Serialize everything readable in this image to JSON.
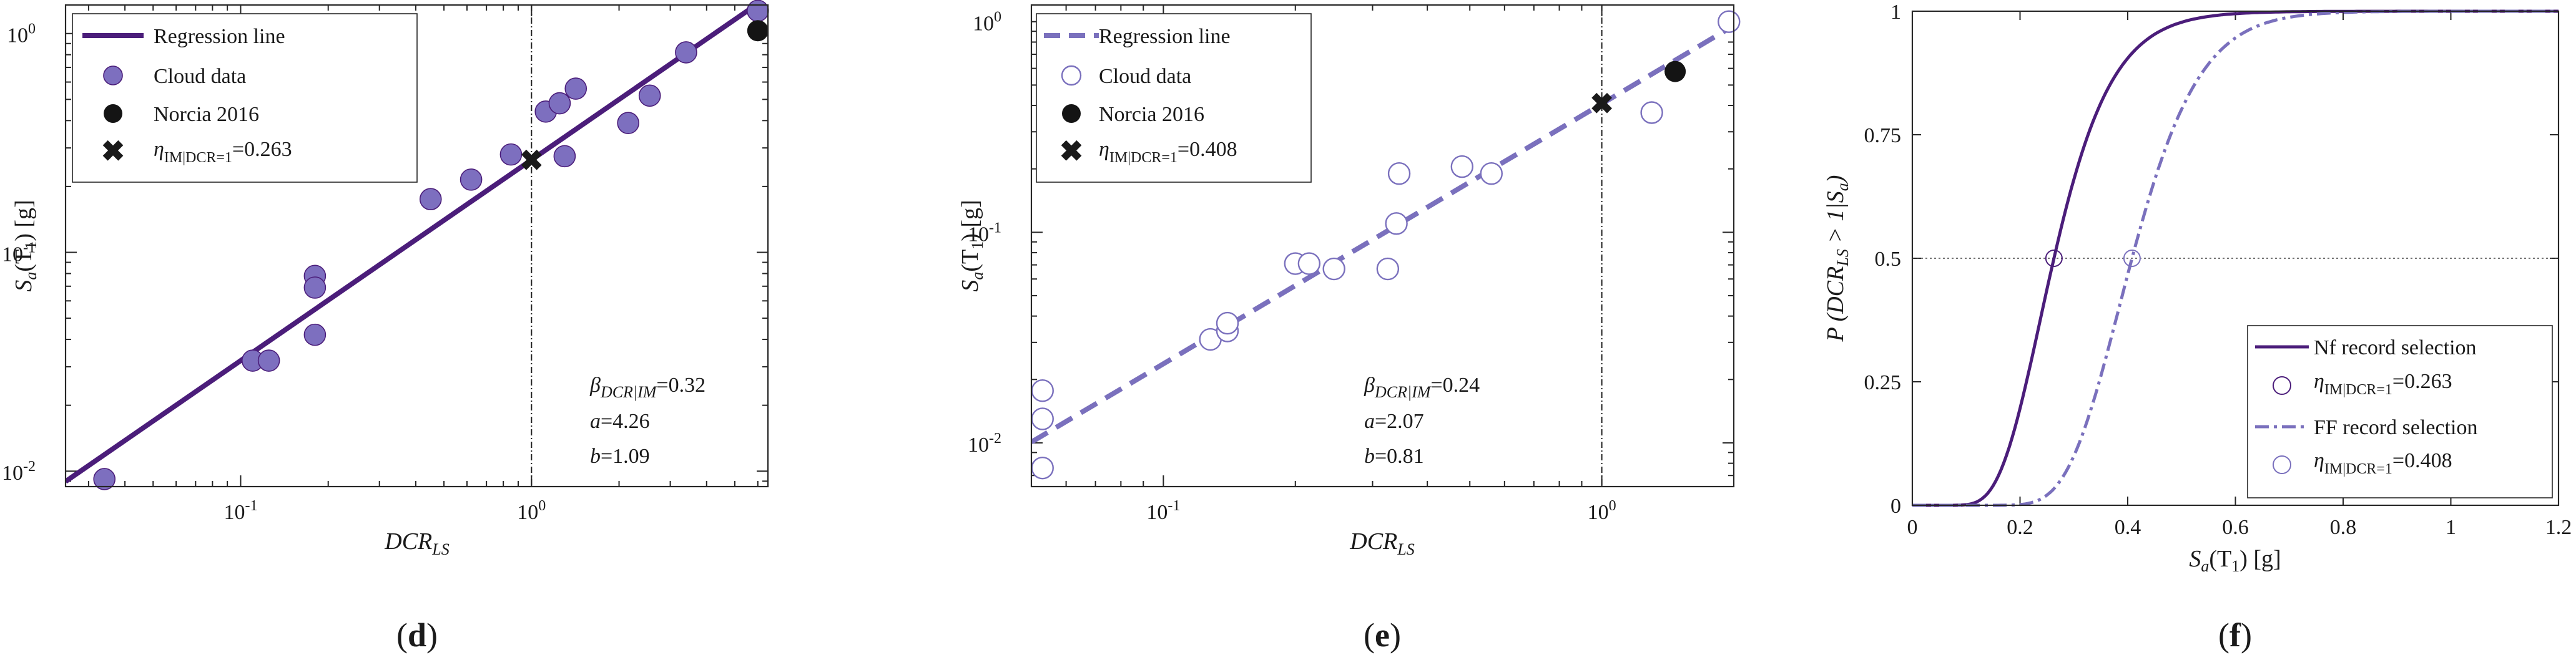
{
  "colors": {
    "dark_purple": "#4b1d7a",
    "light_purple": "#7a70bd",
    "fill_purple": "#7d6fbf",
    "black": "#141414",
    "grid": "#555555"
  },
  "chart_data": [
    {
      "id": "d",
      "type": "scatter",
      "xscale": "log",
      "yscale": "log",
      "xlim": [
        0.025,
        6.5
      ],
      "ylim": [
        0.0085,
        1.35
      ],
      "xticks": [
        {
          "value": 0.1,
          "base": "10",
          "exp": "-1"
        },
        {
          "value": 1,
          "base": "10",
          "exp": "0"
        }
      ],
      "yticks": [
        {
          "value": 0.01,
          "base": "10",
          "exp": "-2"
        },
        {
          "value": 0.1,
          "base": "10",
          "exp": "-1"
        },
        {
          "value": 1,
          "base": "10",
          "exp": "0"
        }
      ],
      "xlabel": {
        "main": "DCR",
        "sub": "LS"
      },
      "ylabel": {
        "main": "S",
        "sub": "a",
        "rest": "(T",
        "sub2": "1",
        "tail": ") [g]"
      },
      "legend": {
        "placement": "top-left",
        "items": [
          {
            "label": "Regression line",
            "symbol": "line"
          },
          {
            "label": "Cloud data",
            "symbol": "filled-circle"
          },
          {
            "label": "Norcia 2016",
            "symbol": "black-circle"
          },
          {
            "label": "η",
            "sub": "IM|DCR=1",
            "suffix": "=0.263",
            "symbol": "x"
          }
        ]
      },
      "regression": {
        "a": 4.26,
        "b": 1.09,
        "style": "solid"
      },
      "threshold_x": 1,
      "cloud": [
        [
          0.034,
          0.0092
        ],
        [
          0.11,
          0.032
        ],
        [
          0.125,
          0.032
        ],
        [
          0.18,
          0.078
        ],
        [
          0.18,
          0.069
        ],
        [
          0.18,
          0.042
        ],
        [
          0.45,
          0.175
        ],
        [
          0.62,
          0.215
        ],
        [
          0.85,
          0.28
        ],
        [
          1.12,
          0.44
        ],
        [
          1.25,
          0.48
        ],
        [
          1.3,
          0.275
        ],
        [
          1.42,
          0.56
        ],
        [
          2.15,
          0.39
        ],
        [
          2.55,
          0.52
        ],
        [
          3.4,
          0.82
        ],
        [
          6.0,
          1.27
        ]
      ],
      "norcia": [
        6.0,
        1.03
      ],
      "eta_point": [
        1,
        0.263
      ],
      "annotation": {
        "beta_symbol": "β",
        "beta_sub": "DCR|IM",
        "beta_value": "=0.32",
        "a_label": "a",
        "a_value": "=4.26",
        "b_label": "b",
        "b_value": "=1.09"
      },
      "panel_label": "d"
    },
    {
      "id": "e",
      "type": "scatter",
      "xscale": "log",
      "yscale": "log",
      "xlim": [
        0.05,
        2.0
      ],
      "ylim": [
        0.0062,
        1.2
      ],
      "xticks": [
        {
          "value": 0.1,
          "base": "10",
          "exp": "-1"
        },
        {
          "value": 1,
          "base": "10",
          "exp": "0"
        }
      ],
      "yticks": [
        {
          "value": 0.01,
          "base": "10",
          "exp": "-2"
        },
        {
          "value": 0.1,
          "base": "10",
          "exp": "-1"
        },
        {
          "value": 1,
          "base": "10",
          "exp": "0"
        }
      ],
      "xlabel": {
        "main": "DCR",
        "sub": "LS"
      },
      "ylabel": {
        "main": "S",
        "sub": "a",
        "rest": "(T",
        "sub2": "1",
        "tail": ") [g]"
      },
      "legend": {
        "placement": "top-left",
        "items": [
          {
            "label": "Regression line",
            "symbol": "dashed-line"
          },
          {
            "label": "Cloud data",
            "symbol": "open-circle"
          },
          {
            "label": "Norcia 2016",
            "symbol": "black-circle"
          },
          {
            "label": "η",
            "sub": "IM|DCR=1",
            "suffix": "=0.408",
            "symbol": "x"
          }
        ]
      },
      "regression": {
        "a": 2.07,
        "b": 0.81,
        "style": "dashed"
      },
      "threshold_x": 1,
      "cloud": [
        [
          0.053,
          0.0177
        ],
        [
          0.053,
          0.013
        ],
        [
          0.053,
          0.0076
        ],
        [
          0.128,
          0.031
        ],
        [
          0.14,
          0.034
        ],
        [
          0.14,
          0.037
        ],
        [
          0.2,
          0.071
        ],
        [
          0.215,
          0.071
        ],
        [
          0.245,
          0.067
        ],
        [
          0.325,
          0.067
        ],
        [
          0.34,
          0.11
        ],
        [
          0.345,
          0.19
        ],
        [
          0.48,
          0.205
        ],
        [
          0.56,
          0.19
        ],
        [
          1.3,
          0.37
        ],
        [
          1.95,
          1.0
        ]
      ],
      "norcia": [
        1.47,
        0.58
      ],
      "eta_point": [
        1,
        0.408
      ],
      "annotation": {
        "beta_symbol": "β",
        "beta_sub": "DCR|IM",
        "beta_value": "=0.24",
        "a_label": "a",
        "a_value": "=2.07",
        "b_label": "b",
        "b_value": "=0.81"
      },
      "panel_label": "e"
    },
    {
      "id": "f",
      "type": "line",
      "xlim": [
        0,
        1.2
      ],
      "ylim": [
        0,
        1
      ],
      "xticks": [
        0,
        0.2,
        0.4,
        0.6,
        0.8,
        1,
        1.2
      ],
      "xtick_labels": [
        "0",
        "0.2",
        "0.4",
        "0.6",
        "0.8",
        "1",
        "1.2"
      ],
      "yticks": [
        0,
        0.25,
        0.5,
        0.75,
        1
      ],
      "ytick_labels": [
        "0",
        "0.25",
        "0.5",
        "0.75",
        "1"
      ],
      "xlabel": {
        "main": "S",
        "sub": "a",
        "rest": "(T",
        "sub2": "1",
        "tail": ") [g]"
      },
      "ylabel": {
        "pre": "P (DCR",
        "sub": "LS",
        "post": " > 1|S",
        "sub2": "a",
        "tail": ")"
      },
      "reference_y": 0.5,
      "series": [
        {
          "name": "Nf record selection",
          "median": 0.263,
          "beta": 0.32,
          "style": "solid"
        },
        {
          "name": "FF record selection",
          "median": 0.408,
          "beta": 0.24,
          "style": "dashdot"
        }
      ],
      "legend": {
        "placement": "bottom-right",
        "items": [
          {
            "label": "Nf record selection",
            "symbol": "line"
          },
          {
            "label": "η",
            "sub": "IM|DCR=1",
            "suffix": "=0.263",
            "symbol": "open-circle-dark"
          },
          {
            "label": "FF record selection",
            "symbol": "dashdot-line"
          },
          {
            "label": "η",
            "sub": "IM|DCR=1",
            "suffix": "=0.408",
            "symbol": "open-circle-light"
          }
        ]
      },
      "panel_label": "f"
    }
  ]
}
